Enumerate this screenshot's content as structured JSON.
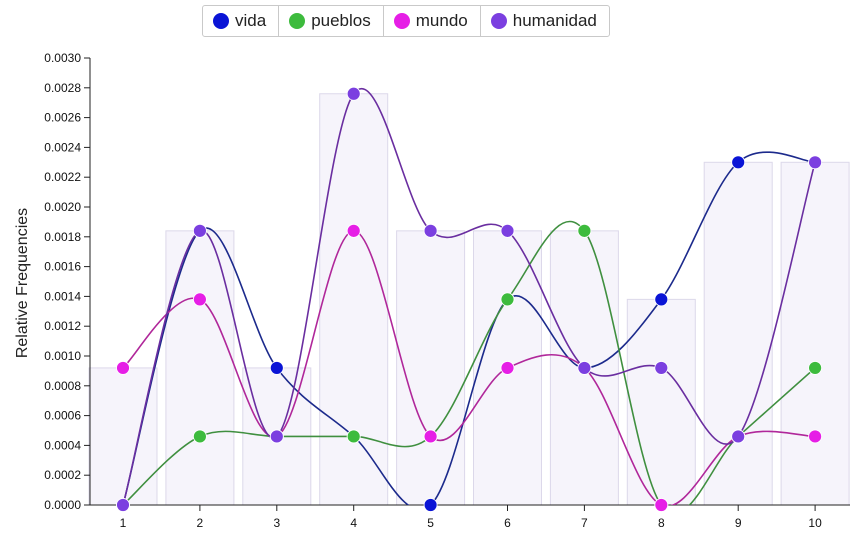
{
  "chart_data": {
    "type": "line",
    "title": "",
    "xlabel": "",
    "ylabel": "Relative Frequencies",
    "categories": [
      "1",
      "2",
      "3",
      "4",
      "5",
      "6",
      "7",
      "8",
      "9",
      "10"
    ],
    "ylim": [
      0,
      0.003
    ],
    "yticks": [
      "0.0000",
      "0.0002",
      "0.0004",
      "0.0006",
      "0.0008",
      "0.0010",
      "0.0012",
      "0.0014",
      "0.0016",
      "0.0018",
      "0.0020",
      "0.0022",
      "0.0024",
      "0.0026",
      "0.0028",
      "0.0030"
    ],
    "legend_position": "top-center",
    "series": [
      {
        "name": "vida",
        "color": "#0a14d6",
        "line_color": "#1c2a8c",
        "values": [
          0.0,
          0.00184,
          0.00092,
          0.00046,
          0.0,
          0.00138,
          0.00092,
          0.00138,
          0.0023,
          0.0023
        ]
      },
      {
        "name": "pueblos",
        "color": "#3dbb3d",
        "line_color": "#3f8f3f",
        "values": [
          0.0,
          0.00046,
          0.00046,
          0.00046,
          0.00046,
          0.00138,
          0.00184,
          0.0,
          0.00046,
          0.00092
        ]
      },
      {
        "name": "mundo",
        "color": "#e61ee6",
        "line_color": "#b0279a",
        "values": [
          0.00092,
          0.00138,
          0.00046,
          0.00184,
          0.00046,
          0.00092,
          0.00092,
          0.0,
          0.00046,
          0.00046
        ]
      },
      {
        "name": "humanidad",
        "color": "#7b3fe0",
        "line_color": "#6a2ea0",
        "values": [
          0.0,
          0.00184,
          0.00046,
          0.00276,
          0.00184,
          0.00184,
          0.00092,
          0.00092,
          0.00046,
          0.0023
        ]
      }
    ],
    "background_bars": {
      "color": "#f6f4fb",
      "values": [
        0.00092,
        0.00184,
        0.00092,
        0.00276,
        0.00184,
        0.00184,
        0.00184,
        0.00138,
        0.0023,
        0.0023
      ]
    },
    "grid": false
  }
}
